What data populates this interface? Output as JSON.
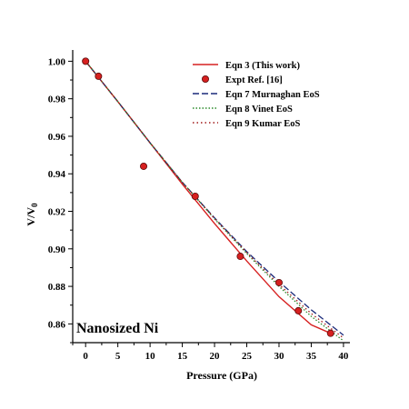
{
  "chart_data": {
    "type": "line",
    "xlabel": "Pressure (GPa)",
    "ylabel_main": "V/V",
    "ylabel_sub": "0",
    "xlim": [
      -2,
      41
    ],
    "ylim": [
      0.85,
      1.006
    ],
    "x_ticks": [
      "0",
      "5",
      "10",
      "15",
      "20",
      "25",
      "30",
      "35",
      "40"
    ],
    "y_ticks": [
      "0.86",
      "0.88",
      "0.90",
      "0.92",
      "0.94",
      "0.96",
      "0.98",
      "1.00"
    ],
    "annotation": "Nanosized Ni",
    "legend_position": "top-right",
    "series": [
      {
        "name": "Eqn 3 (This work)",
        "kind": "line",
        "color": "#d62020",
        "dash": "solid",
        "x": [
          0,
          5,
          10,
          15,
          20,
          25,
          30,
          35,
          38
        ],
        "y": [
          1.0,
          0.9785,
          0.9565,
          0.9345,
          0.9135,
          0.8935,
          0.8745,
          0.8595,
          0.855
        ]
      },
      {
        "name": "Expt  Ref. [16]",
        "kind": "points",
        "color": "#d62020",
        "x": [
          0,
          2,
          9,
          17,
          24,
          30,
          33,
          38
        ],
        "y": [
          1.0,
          0.992,
          0.944,
          0.928,
          0.896,
          0.882,
          0.867,
          0.855
        ]
      },
      {
        "name": "Eqn 7 Murnaghan EoS",
        "kind": "line",
        "color": "#1a2a7a",
        "dash": "dash",
        "x": [
          0,
          5,
          10,
          15,
          20,
          25,
          30,
          35,
          40
        ],
        "y": [
          1.0,
          0.9785,
          0.9565,
          0.9355,
          0.9165,
          0.8985,
          0.8825,
          0.8675,
          0.854
        ]
      },
      {
        "name": "Eqn 8 Vinet EoS",
        "kind": "line",
        "color": "#2a8a2a",
        "dash": "dot",
        "x": [
          0,
          5,
          10,
          15,
          20,
          25,
          30,
          35,
          40
        ],
        "y": [
          1.0,
          0.9785,
          0.9565,
          0.9355,
          0.916,
          0.8975,
          0.88,
          0.864,
          0.851
        ]
      },
      {
        "name": "Eqn 9 Kumar EoS",
        "kind": "line",
        "color": "#a01818",
        "dash": "dashdot",
        "x": [
          0,
          5,
          10,
          15,
          20,
          25,
          30,
          35,
          40
        ],
        "y": [
          1.0,
          0.9785,
          0.9565,
          0.9355,
          0.9162,
          0.898,
          0.881,
          0.8655,
          0.8525
        ]
      }
    ]
  }
}
